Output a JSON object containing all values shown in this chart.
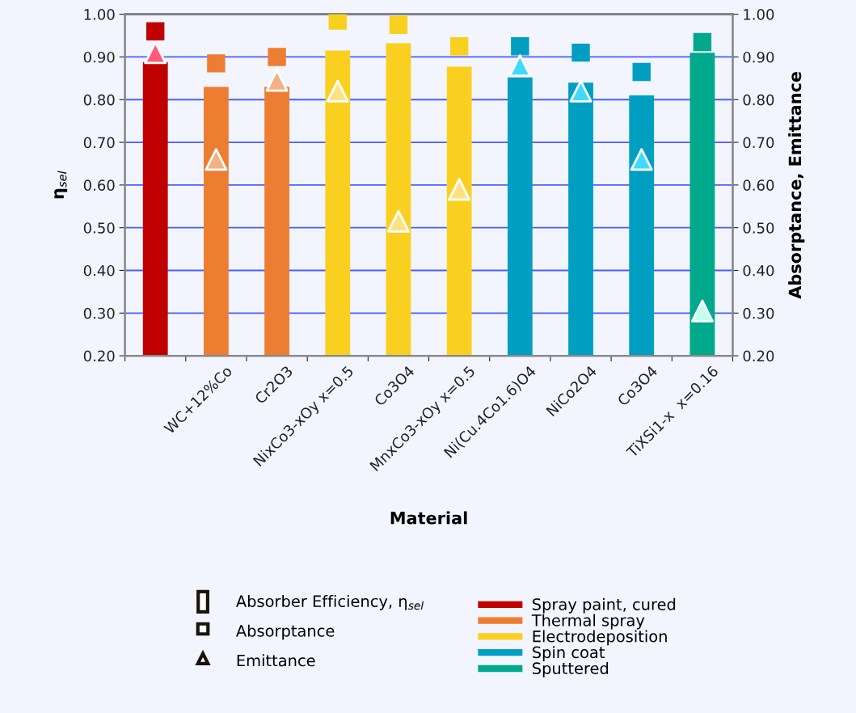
{
  "chart_data": {
    "type": "bar",
    "xlabel": "Material",
    "ylabel": "η$_{sel}$",
    "y2label": "Absorptance, Emittance",
    "categories": [
      null,
      "WC+12%Co",
      "Cr2O3",
      "NixCo3-xOy x=0.5",
      "Co3O4",
      "MnxCo3-xOy x=0.5",
      "Ni(Cu.4Co1.6)O4",
      "NiCo2O4",
      "Co3O4",
      "TiXSi1-x  x=0.16"
    ],
    "series": [
      {
        "name": "Spray paint, cured",
        "color": "#c00000",
        "values": [
          0.888,
          null,
          null,
          null,
          null,
          null,
          null,
          null,
          null,
          null
        ]
      },
      {
        "name": "Thermal spray",
        "color": "#ed7d31",
        "values": [
          null,
          0.83,
          0.83,
          null,
          null,
          null,
          null,
          null,
          null,
          null
        ]
      },
      {
        "name": "Electrodeposition",
        "color": "#fad020",
        "values": [
          null,
          null,
          null,
          0.915,
          0.932,
          0.877,
          null,
          null,
          null,
          null
        ]
      },
      {
        "name": "Spin coat",
        "color": "#009fc2",
        "values": [
          null,
          null,
          null,
          null,
          null,
          null,
          0.852,
          0.84,
          0.81,
          null
        ]
      },
      {
        "name": "Sputtered",
        "color": "#00a88c",
        "values": [
          null,
          null,
          null,
          null,
          null,
          null,
          null,
          null,
          null,
          0.91
        ]
      },
      {
        "type": "scatter",
        "axis": "y2",
        "marker": "square",
        "colors": [
          "#c00000",
          "#ed7d31",
          "#ed7d31",
          "#fad020",
          "#fad020",
          "#fad020",
          "#009fc2",
          "#009fc2",
          "#009fc2",
          "#00a88c"
        ],
        "values": [
          0.96,
          0.885,
          0.9,
          0.985,
          0.975,
          0.925,
          0.925,
          0.91,
          0.865,
          0.935
        ]
      },
      {
        "type": "scatter",
        "axis": "y2",
        "marker": "triangle",
        "colors": [
          "#ff5a78",
          "#f4b183",
          "#f4b183",
          "#ffe083",
          "#ffe083",
          "#ffe083",
          "#40d9ff",
          "#40d9ff",
          "#40d9ff",
          "#c0fff0"
        ],
        "values": [
          0.91,
          0.66,
          0.845,
          0.82,
          0.515,
          0.59,
          0.88,
          0.82,
          0.66,
          0.305
        ]
      }
    ],
    "annotations": [
      "Absorber Efficiency, η$_{sel}$",
      "Absorptance",
      "Emittance"
    ],
    "ylim": [
      0.2,
      1.0
    ],
    "yticks": [
      {
        "value": 0.2,
        "label": "0.20"
      },
      {
        "value": 0.3,
        "label": "0.30"
      },
      {
        "value": 0.4,
        "label": "0.40"
      },
      {
        "value": 0.5,
        "label": "0.50"
      },
      {
        "value": 0.6,
        "label": "0.60"
      },
      {
        "value": 0.7,
        "label": "0.70"
      },
      {
        "value": 0.8,
        "label": "0.80"
      },
      {
        "value": 0.9,
        "label": "0.90"
      },
      {
        "value": 1.0,
        "label": "1.00"
      }
    ],
    "y2lim": [
      0.2,
      1.0
    ],
    "y2ticks": [
      {
        "value": 0.2,
        "label": "0.20"
      },
      {
        "value": 0.3,
        "label": "0.30"
      },
      {
        "value": 0.4,
        "label": "0.40"
      },
      {
        "value": 0.5,
        "label": "0.50"
      },
      {
        "value": 0.6,
        "label": "0.60"
      },
      {
        "value": 0.7,
        "label": "0.70"
      },
      {
        "value": 0.8,
        "label": "0.80"
      },
      {
        "value": 0.9,
        "label": "0.90"
      },
      {
        "value": 1.0,
        "label": "1.00"
      }
    ],
    "grid": "y",
    "legend": "bottom"
  }
}
